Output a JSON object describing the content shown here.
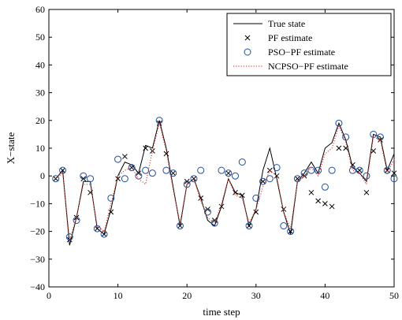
{
  "chart_data": {
    "type": "line",
    "xlabel": "time step",
    "ylabel": "X−state",
    "xlim": [
      0,
      50
    ],
    "ylim": [
      -40,
      60
    ],
    "xticks": [
      0,
      10,
      20,
      30,
      40,
      50
    ],
    "yticks": [
      -40,
      -30,
      -20,
      -10,
      0,
      10,
      20,
      30,
      40,
      50,
      60
    ],
    "grid": false,
    "legend_position": "top-right",
    "series": [
      {
        "name": "True state",
        "style": "line",
        "color": "#000000",
        "x": [
          1,
          2,
          3,
          4,
          5,
          6,
          7,
          8,
          9,
          10,
          11,
          12,
          13,
          14,
          15,
          16,
          17,
          18,
          19,
          20,
          21,
          22,
          23,
          24,
          25,
          26,
          27,
          28,
          29,
          30,
          31,
          32,
          33,
          34,
          35,
          36,
          37,
          38,
          39,
          40,
          41,
          42,
          43,
          44,
          45,
          46,
          47,
          48,
          49,
          50
        ],
        "y": [
          -1,
          2,
          -25,
          -15,
          -2,
          -2,
          -19,
          -21,
          -12,
          0,
          5,
          4,
          1,
          11,
          10,
          20,
          10,
          -4,
          -18,
          -3,
          -1,
          -8,
          -16,
          -18,
          -11,
          -1,
          -6,
          -7,
          -18,
          -12,
          2,
          10,
          -1,
          -13,
          -21,
          -2,
          1,
          5,
          1,
          10,
          12,
          19,
          13,
          3,
          1,
          -2,
          15,
          14,
          2,
          8
        ]
      },
      {
        "name": "PF estimate",
        "style": "marker-x",
        "color": "#000000",
        "x": [
          1,
          2,
          3,
          4,
          5,
          6,
          7,
          8,
          9,
          10,
          11,
          12,
          13,
          14,
          15,
          16,
          17,
          18,
          19,
          20,
          21,
          22,
          23,
          24,
          25,
          26,
          27,
          28,
          29,
          30,
          31,
          32,
          33,
          34,
          35,
          36,
          37,
          38,
          39,
          40,
          41,
          42,
          43,
          44,
          45,
          46,
          47,
          48,
          49,
          50
        ],
        "y": [
          -1,
          2,
          -23,
          -15,
          -1,
          -6,
          -19,
          -21,
          -13,
          -1,
          7,
          3,
          1,
          10,
          9,
          19,
          8,
          1,
          -18,
          -2,
          -1,
          -8,
          -12,
          -16,
          -11,
          1,
          -6,
          -7,
          -18,
          -13,
          -2,
          2,
          0,
          -12,
          -20,
          -1,
          0,
          -6,
          -9,
          -10,
          -11,
          10,
          10,
          4,
          2,
          -6,
          9,
          13,
          2,
          1
        ]
      },
      {
        "name": "PSO−PF estimate",
        "style": "marker-circle",
        "color": "#1f4e9a",
        "x": [
          1,
          2,
          3,
          4,
          5,
          6,
          7,
          8,
          9,
          10,
          11,
          12,
          13,
          14,
          15,
          16,
          17,
          18,
          19,
          20,
          21,
          22,
          23,
          24,
          25,
          26,
          27,
          28,
          29,
          30,
          31,
          32,
          33,
          34,
          35,
          36,
          37,
          38,
          39,
          40,
          41,
          42,
          43,
          44,
          45,
          46,
          47,
          48,
          49,
          50
        ],
        "y": [
          -1,
          2,
          -22,
          -16,
          0,
          -1,
          -19,
          -21,
          -8,
          6,
          -1,
          3,
          0,
          2,
          1,
          20,
          2,
          1,
          -18,
          -3,
          -1,
          2,
          -13,
          -17,
          2,
          1,
          0,
          5,
          -18,
          -8,
          -2,
          -1,
          3,
          -18,
          -20,
          -1,
          1,
          2,
          2,
          -4,
          2,
          19,
          14,
          2,
          2,
          0,
          15,
          14,
          2,
          -1
        ]
      },
      {
        "name": "NCPSO−PF estimate",
        "style": "dotted",
        "color": "#e8423a",
        "x": [
          1,
          2,
          3,
          4,
          5,
          6,
          7,
          8,
          9,
          10,
          11,
          12,
          13,
          14,
          15,
          16,
          17,
          18,
          19,
          20,
          21,
          22,
          23,
          24,
          25,
          26,
          27,
          28,
          29,
          30,
          31,
          32,
          33,
          34,
          35,
          36,
          37,
          38,
          39,
          40,
          41,
          42,
          43,
          44,
          45,
          46,
          47,
          48,
          49,
          50
        ],
        "y": [
          -1,
          1,
          -23,
          -15,
          -3,
          -3,
          -18,
          -20,
          -10,
          0,
          2,
          3,
          -1,
          -3,
          9,
          19,
          9,
          -5,
          -17,
          -3,
          -1,
          -9,
          -15,
          -17,
          -10,
          -1,
          -7,
          -8,
          -17,
          -12,
          -4,
          2,
          0,
          -13,
          -19,
          -2,
          0,
          3,
          0,
          8,
          10,
          18,
          12,
          2,
          1,
          -3,
          14,
          13,
          1,
          6
        ]
      }
    ]
  }
}
